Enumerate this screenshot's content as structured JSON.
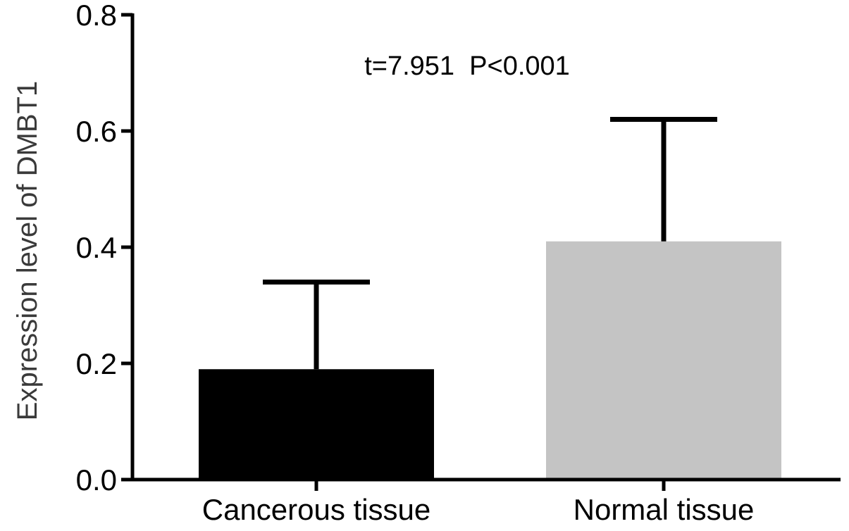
{
  "chart_data": {
    "type": "bar",
    "categories": [
      "Cancerous tissue",
      "Normal tissue"
    ],
    "values": [
      0.19,
      0.41
    ],
    "error_upper": [
      0.34,
      0.62
    ],
    "colors": [
      "#000000",
      "#c4c4c4"
    ],
    "ylabel": "Expression level of DMBT1",
    "ylim": [
      0,
      0.8
    ],
    "yticks": [
      "0.0",
      "0.2",
      "0.4",
      "0.6",
      "0.8"
    ],
    "annotation": "t=7.951  P<0.001",
    "grid": false
  }
}
